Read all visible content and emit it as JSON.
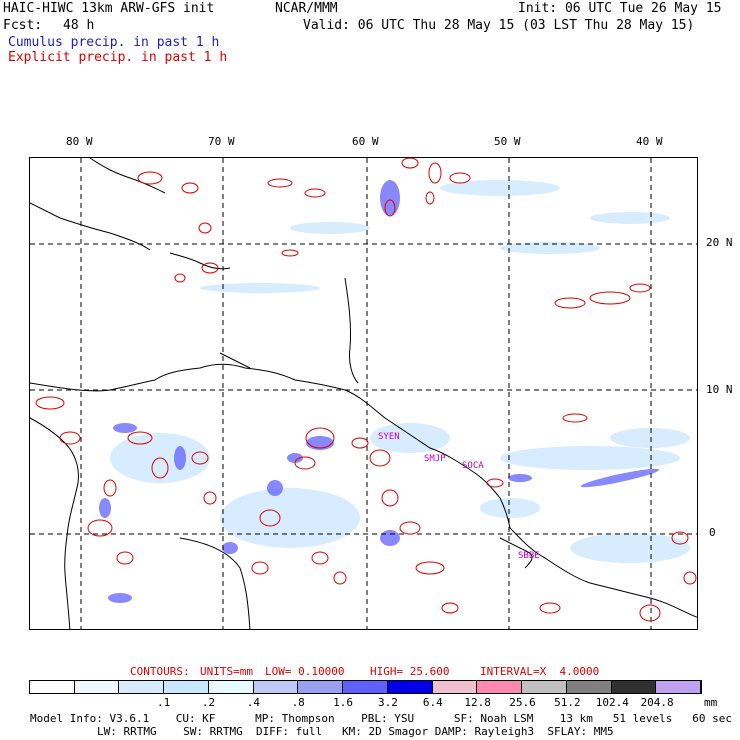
{
  "header": {
    "model": "HAIC-HIWC 13km ARW-GFS init",
    "org": "NCAR/MMM",
    "init": "Init: 06 UTC Tue 26 May 15",
    "fcst_label": "Fcst:",
    "fcst_value": "48 h",
    "valid": "Valid: 06 UTC Thu 28 May 15 (03 LST Thu 28 May 15)",
    "cumulus": "Cumulus precip. in past 1 h",
    "explicit": "Explicit precip. in past 1 h"
  },
  "map": {
    "lon_labels": [
      "80 W",
      "70 W",
      "60 W",
      "50 W",
      "40 W"
    ],
    "lat_labels": [
      "20 N",
      "10 N",
      "0"
    ],
    "stations": [
      "SYEN",
      "SMJP",
      "SOCA",
      "SBBE"
    ]
  },
  "contours": {
    "label": "CONTOURS:",
    "units": "UNITS=mm",
    "low": "LOW= 0.10000",
    "high": "HIGH= 25.600",
    "interval": "INTERVAL=X  4.0000"
  },
  "colorbar": {
    "colors": [
      "#ffffff",
      "#eef8ff",
      "#d8ecff",
      "#c8e8ff",
      "#e6fbff",
      "#c0c8f8",
      "#9aa0f0",
      "#6060ff",
      "#0000e8",
      "#f0c0d0",
      "#ff88b0",
      "#c0c0c0",
      "#808080",
      "#303030",
      "#c0a0f0"
    ],
    "labels": [
      ".1",
      ".2",
      ".4",
      ".8",
      "1.6",
      "3.2",
      "6.4",
      "12.8",
      "25.6",
      "51.2",
      "102.4",
      "204.8"
    ],
    "unit": "mm"
  },
  "footer": {
    "line1": "Model Info: V3.6.1    CU: KF      MP: Thompson    PBL: YSU      SF: Noah LSM    13 km   51 levels   60 sec",
    "line2": "LW: RRTMG    SW: RRTMG  DIFF: full   KM: 2D Smagor DAMP: Rayleigh3  SFLAY: MM5"
  }
}
